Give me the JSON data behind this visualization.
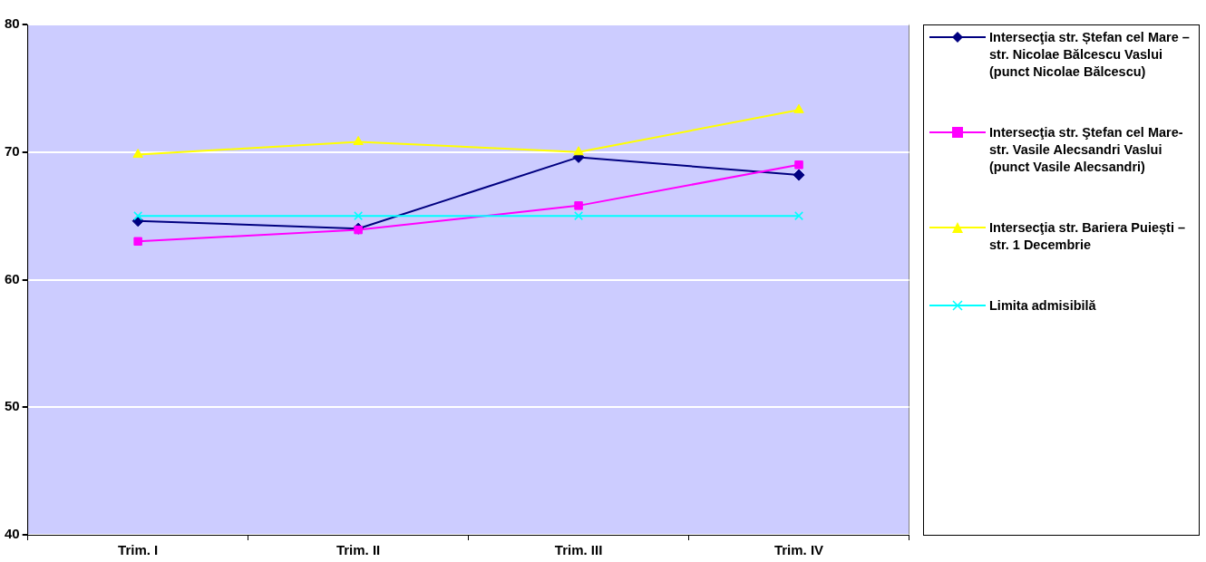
{
  "chart_data": {
    "type": "line",
    "categories": [
      "Trim. I",
      "Trim. II",
      "Trim. III",
      "Trim. IV"
    ],
    "series": [
      {
        "name": "Intersecţia str. Ștefan cel Mare – str. Nicolae Bălcescu Vaslui (punct Nicolae Bălcescu)",
        "color": "#000080",
        "marker": "diamond",
        "values": [
          64.6,
          64.0,
          69.6,
          68.2
        ]
      },
      {
        "name": "Intersecţia str. Ştefan cel Mare- str. Vasile Alecsandri Vaslui (punct Vasile Alecsandri)",
        "color": "#ff00ff",
        "marker": "square",
        "values": [
          63.0,
          63.9,
          65.8,
          69.0
        ]
      },
      {
        "name": "Intersecţia str. Bariera Puiești – str. 1 Decembrie",
        "color": "#ffff00",
        "marker": "triangle",
        "values": [
          69.8,
          70.8,
          70.0,
          73.3
        ]
      },
      {
        "name": "Limita admisibilă",
        "color": "#00ffff",
        "marker": "cross",
        "values": [
          65,
          65,
          65,
          65
        ]
      }
    ],
    "ylim": [
      40,
      80
    ],
    "yticks": [
      40,
      50,
      60,
      70,
      80
    ],
    "grid": "y",
    "legend": "right",
    "line_style": "solid"
  }
}
